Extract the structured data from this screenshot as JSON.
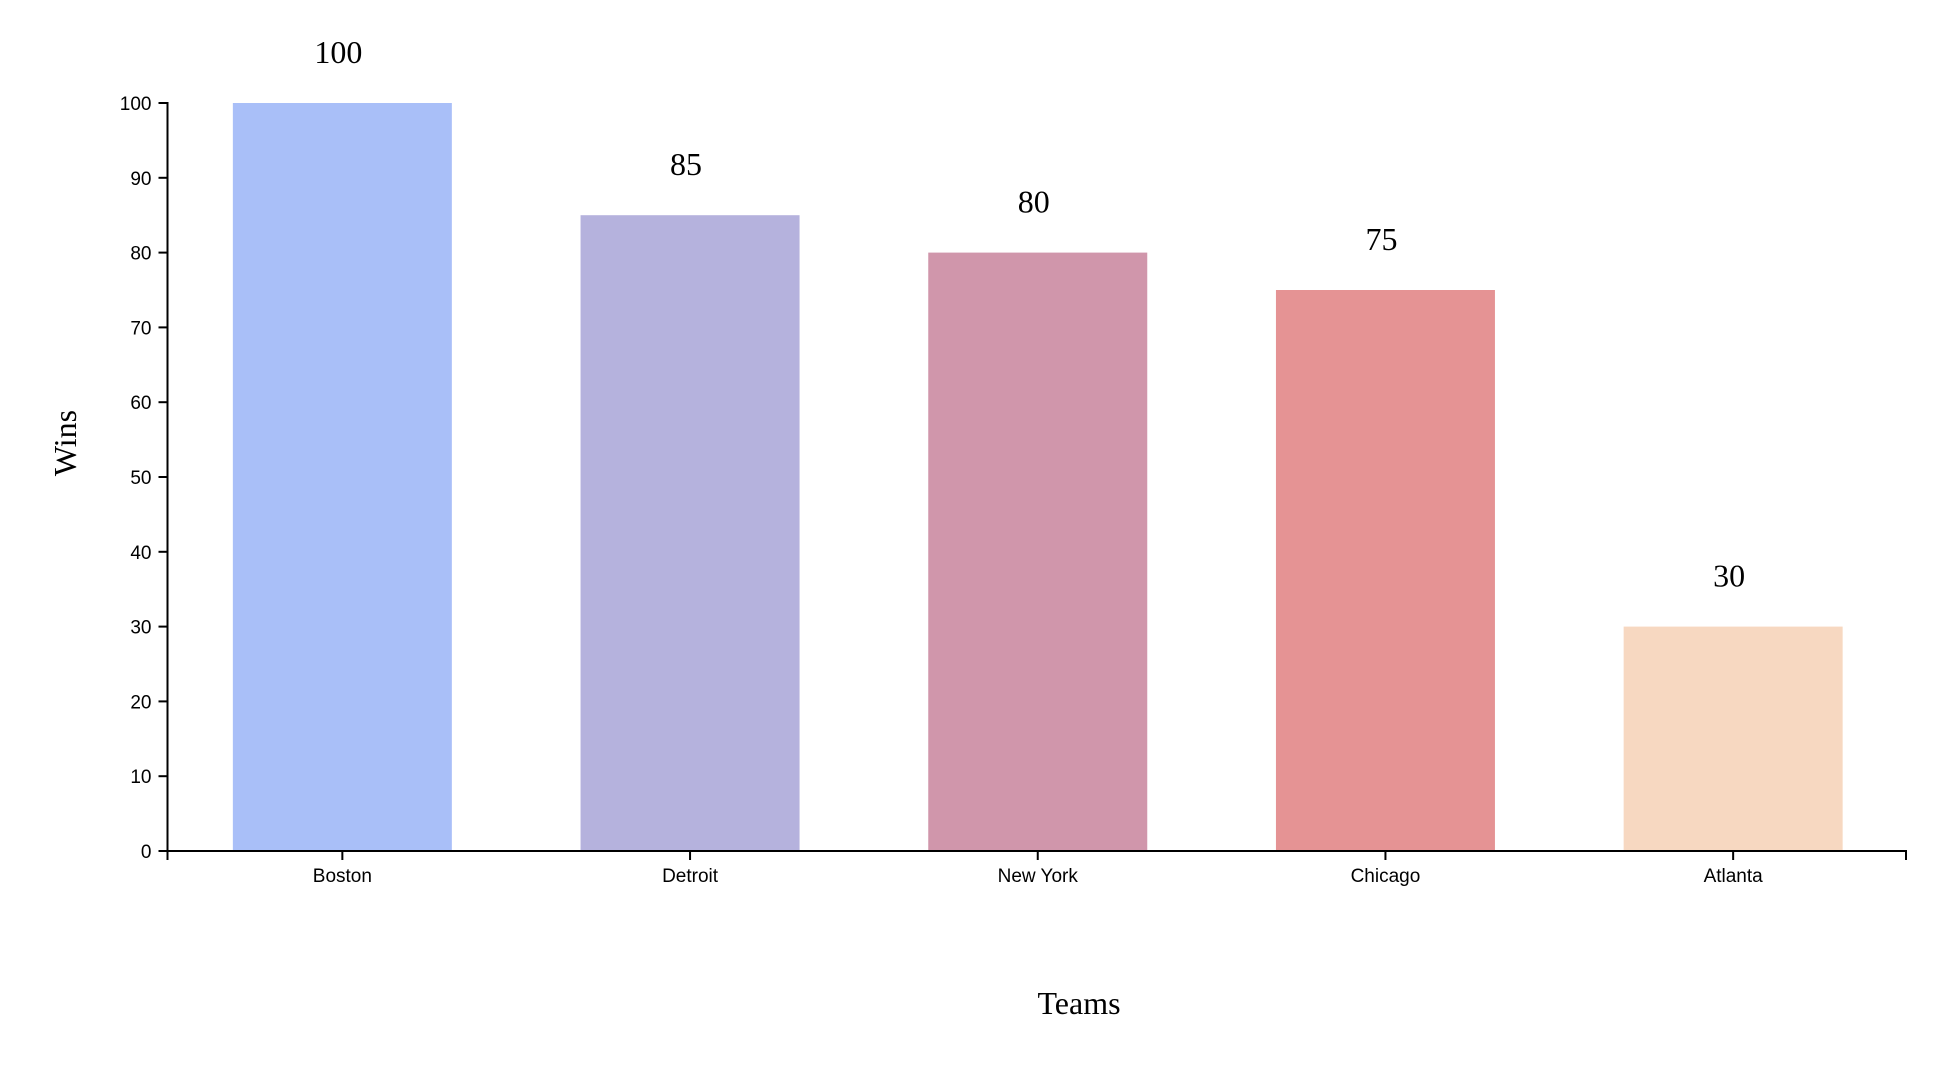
{
  "chart_data": {
    "type": "bar",
    "categories": [
      "Boston",
      "Detroit",
      "New York",
      "Chicago",
      "Atlanta"
    ],
    "values": [
      100,
      85,
      80,
      75,
      30
    ],
    "colors": [
      "#a9bff8",
      "#b5b2dd",
      "#d096ab",
      "#e59394",
      "#f7d8c1"
    ],
    "title": "",
    "xlabel": "Teams",
    "ylabel": "Wins",
    "ylim": [
      0,
      100
    ],
    "yticks": [
      0,
      10,
      20,
      30,
      40,
      50,
      60,
      70,
      80,
      90,
      100
    ],
    "yticklabels": [
      "0",
      "10",
      "20",
      "30",
      "40",
      "50",
      "60",
      "70",
      "80",
      "90",
      "100"
    ],
    "data_labels": [
      "100",
      "85",
      "80",
      "75",
      "30"
    ],
    "grid": false,
    "legend": "none"
  }
}
